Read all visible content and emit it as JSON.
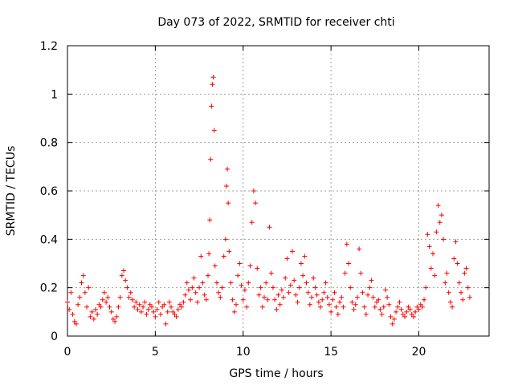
{
  "chart_data": {
    "type": "scatter",
    "title": "Day 073 of 2022, SRMTID for receiver chti",
    "xlabel": "GPS time / hours",
    "ylabel": "SRMTID / TECUs",
    "xlim": [
      0,
      24
    ],
    "ylim": [
      0,
      1.2
    ],
    "xticks": [
      0,
      5,
      10,
      15,
      20
    ],
    "xtick_labels": [
      "0",
      "5",
      "10",
      "15",
      "20"
    ],
    "yticks": [
      0,
      0.2,
      0.4,
      0.6,
      0.8,
      1.0,
      1.2
    ],
    "ytick_labels": [
      "0",
      "0.2",
      "0.4",
      "0.6",
      "0.8",
      "1",
      "1.2"
    ],
    "grid": true,
    "marker": "+",
    "color": "#ff0000",
    "series": [
      {
        "name": "SRMTID",
        "x": [
          0.0,
          0.1,
          0.2,
          0.3,
          0.4,
          0.5,
          0.6,
          0.7,
          0.8,
          0.9,
          1.0,
          1.1,
          1.2,
          1.3,
          1.4,
          1.5,
          1.6,
          1.7,
          1.8,
          1.9,
          2.0,
          2.1,
          2.2,
          2.3,
          2.4,
          2.5,
          2.6,
          2.7,
          2.8,
          2.9,
          3.0,
          3.1,
          3.2,
          3.3,
          3.4,
          3.5,
          3.6,
          3.7,
          3.8,
          3.9,
          4.0,
          4.1,
          4.2,
          4.3,
          4.4,
          4.5,
          4.6,
          4.7,
          4.8,
          4.9,
          5.0,
          5.1,
          5.2,
          5.3,
          5.4,
          5.5,
          5.6,
          5.7,
          5.8,
          5.9,
          6.0,
          6.1,
          6.2,
          6.3,
          6.4,
          6.5,
          6.6,
          6.7,
          6.8,
          6.9,
          7.0,
          7.1,
          7.2,
          7.3,
          7.4,
          7.5,
          7.6,
          7.7,
          7.8,
          7.9,
          8.0,
          8.05,
          8.1,
          8.15,
          8.2,
          8.25,
          8.3,
          8.35,
          8.4,
          8.5,
          8.6,
          8.7,
          8.8,
          8.9,
          9.0,
          9.05,
          9.1,
          9.15,
          9.2,
          9.3,
          9.4,
          9.5,
          9.6,
          9.7,
          9.8,
          9.9,
          10.0,
          10.1,
          10.2,
          10.3,
          10.4,
          10.5,
          10.6,
          10.7,
          10.8,
          10.9,
          11.0,
          11.1,
          11.2,
          11.3,
          11.4,
          11.5,
          11.6,
          11.7,
          11.8,
          11.9,
          12.0,
          12.1,
          12.2,
          12.3,
          12.4,
          12.5,
          12.6,
          12.7,
          12.8,
          12.9,
          13.0,
          13.1,
          13.2,
          13.3,
          13.4,
          13.5,
          13.6,
          13.7,
          13.8,
          13.9,
          14.0,
          14.1,
          14.2,
          14.3,
          14.4,
          14.5,
          14.6,
          14.7,
          14.8,
          14.9,
          15.0,
          15.1,
          15.2,
          15.3,
          15.4,
          15.5,
          15.6,
          15.7,
          15.8,
          15.9,
          16.0,
          16.1,
          16.2,
          16.3,
          16.4,
          16.5,
          16.6,
          16.7,
          16.8,
          16.9,
          17.0,
          17.1,
          17.2,
          17.3,
          17.4,
          17.5,
          17.6,
          17.7,
          17.8,
          17.9,
          18.0,
          18.1,
          18.2,
          18.3,
          18.4,
          18.5,
          18.6,
          18.7,
          18.8,
          18.9,
          19.0,
          19.1,
          19.2,
          19.3,
          19.4,
          19.5,
          19.6,
          19.7,
          19.8,
          19.9,
          20.0,
          20.1,
          20.2,
          20.3,
          20.4,
          20.5,
          20.6,
          20.7,
          20.8,
          20.9,
          21.0,
          21.1,
          21.2,
          21.3,
          21.4,
          21.5,
          21.6,
          21.7,
          21.8,
          21.9,
          22.0,
          22.1,
          22.2,
          22.3,
          22.4,
          22.5,
          22.6,
          22.7,
          22.8,
          22.9
        ],
        "y": [
          0.14,
          0.11,
          0.18,
          0.09,
          0.06,
          0.05,
          0.13,
          0.16,
          0.22,
          0.25,
          0.18,
          0.12,
          0.2,
          0.08,
          0.1,
          0.07,
          0.11,
          0.09,
          0.13,
          0.12,
          0.15,
          0.18,
          0.14,
          0.16,
          0.12,
          0.1,
          0.07,
          0.06,
          0.08,
          0.12,
          0.16,
          0.25,
          0.27,
          0.23,
          0.2,
          0.16,
          0.18,
          0.15,
          0.12,
          0.14,
          0.11,
          0.13,
          0.1,
          0.12,
          0.14,
          0.09,
          0.11,
          0.13,
          0.12,
          0.1,
          0.08,
          0.11,
          0.14,
          0.09,
          0.12,
          0.13,
          0.05,
          0.1,
          0.14,
          0.12,
          0.1,
          0.09,
          0.08,
          0.11,
          0.13,
          0.12,
          0.14,
          0.17,
          0.22,
          0.19,
          0.15,
          0.2,
          0.24,
          0.18,
          0.14,
          0.2,
          0.33,
          0.22,
          0.17,
          0.15,
          0.25,
          0.34,
          0.48,
          0.73,
          0.95,
          1.04,
          1.07,
          0.85,
          0.29,
          0.22,
          0.18,
          0.16,
          0.2,
          0.33,
          0.4,
          0.62,
          0.69,
          0.55,
          0.35,
          0.22,
          0.15,
          0.1,
          0.13,
          0.25,
          0.3,
          0.21,
          0.15,
          0.19,
          0.12,
          0.22,
          0.29,
          0.47,
          0.6,
          0.55,
          0.28,
          0.17,
          0.2,
          0.12,
          0.16,
          0.22,
          0.15,
          0.45,
          0.26,
          0.2,
          0.15,
          0.11,
          0.17,
          0.13,
          0.19,
          0.16,
          0.24,
          0.32,
          0.18,
          0.21,
          0.35,
          0.23,
          0.17,
          0.14,
          0.2,
          0.3,
          0.25,
          0.33,
          0.22,
          0.18,
          0.13,
          0.16,
          0.24,
          0.2,
          0.17,
          0.14,
          0.12,
          0.15,
          0.18,
          0.22,
          0.16,
          0.13,
          0.1,
          0.15,
          0.18,
          0.12,
          0.09,
          0.14,
          0.16,
          0.12,
          0.26,
          0.38,
          0.3,
          0.2,
          0.14,
          0.11,
          0.13,
          0.16,
          0.36,
          0.26,
          0.18,
          0.12,
          0.09,
          0.17,
          0.2,
          0.23,
          0.16,
          0.12,
          0.14,
          0.15,
          0.11,
          0.09,
          0.12,
          0.19,
          0.16,
          0.13,
          0.08,
          0.05,
          0.07,
          0.1,
          0.12,
          0.14,
          0.11,
          0.09,
          0.08,
          0.1,
          0.12,
          0.11,
          0.09,
          0.08,
          0.1,
          0.12,
          0.11,
          0.13,
          0.12,
          0.15,
          0.2,
          0.42,
          0.37,
          0.28,
          0.34,
          0.25,
          0.43,
          0.54,
          0.47,
          0.5,
          0.4,
          0.22,
          0.26,
          0.18,
          0.14,
          0.12,
          0.32,
          0.39,
          0.3,
          0.22,
          0.18,
          0.15,
          0.26,
          0.28,
          0.2,
          0.16
        ]
      }
    ]
  }
}
